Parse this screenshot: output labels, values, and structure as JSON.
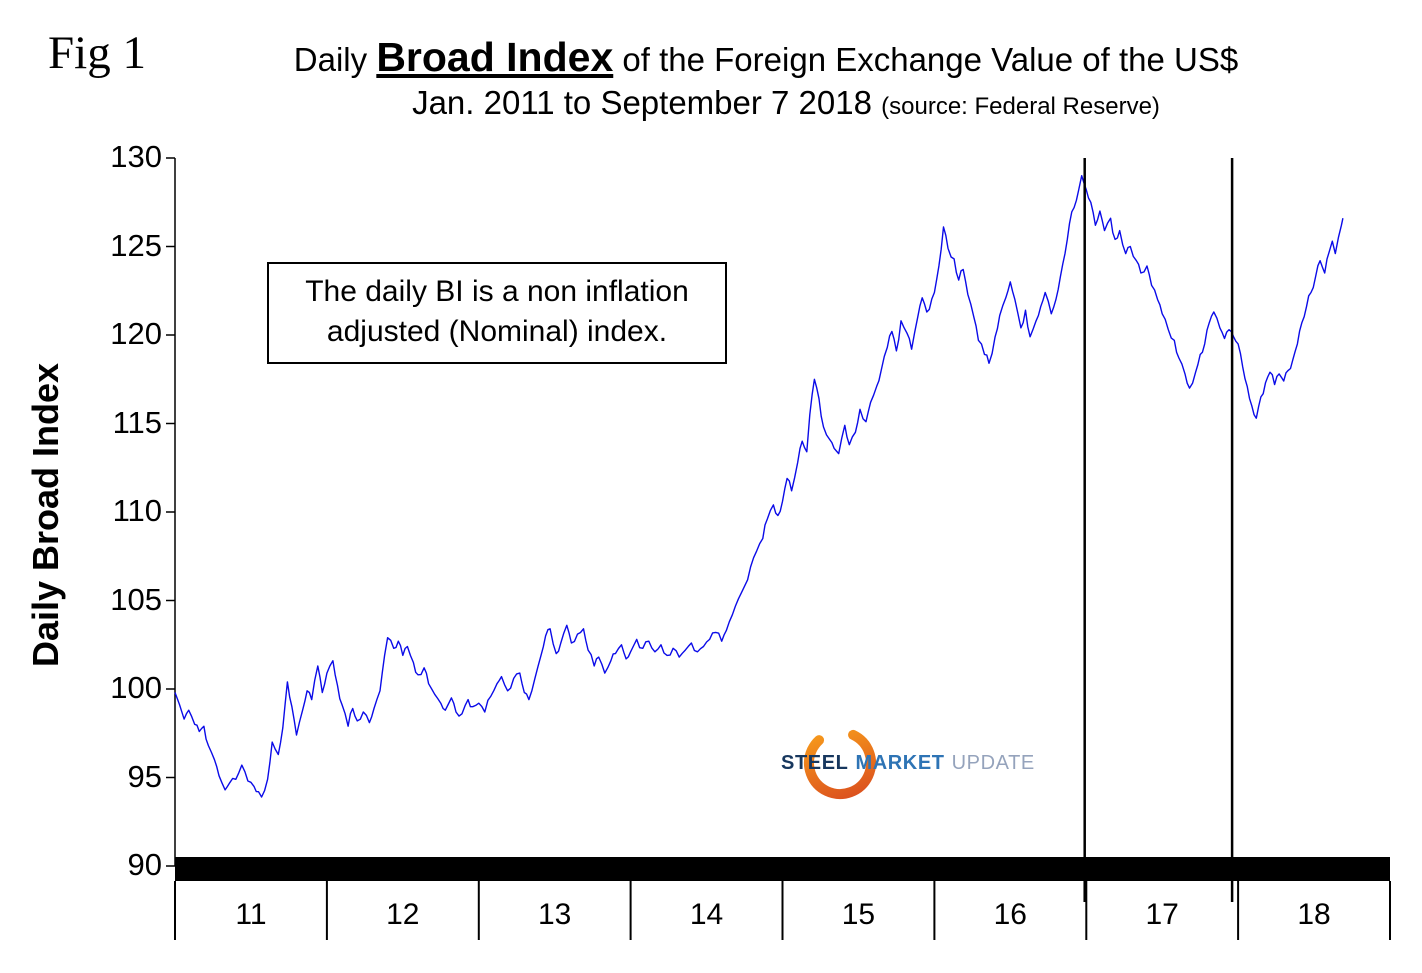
{
  "figure": {
    "fig_label": "Fig 1",
    "title_prefix": "Daily ",
    "title_emphasis": "Broad Index",
    "title_suffix": " of the Foreign Exchange Value of the US$",
    "subtitle": "Jan. 2011 to September 7 2018 ",
    "subtitle_source": "(source: Federal Reserve)"
  },
  "annotation_box": {
    "line1": "The daily BI is a non inflation",
    "line2": "adjusted (Nominal) index."
  },
  "logo": {
    "word1": "STEEL",
    "word2": "MARKET",
    "word3": "UPDATE",
    "word1_color": "#17375E",
    "word2_color": "#2E74B5",
    "word3_color": "#95A3BC",
    "swoosh_color_1": "#D94A1E",
    "swoosh_color_2": "#F9A11B"
  },
  "chart_data": {
    "type": "line",
    "title": "Daily Broad Index of the Foreign Exchange Value of the US$",
    "subtitle": "Jan. 2011 to September 7 2018 (source: Federal Reserve)",
    "xlabel": "",
    "ylabel": "Daily Broad Index",
    "xlim": [
      2011,
      2019
    ],
    "ylim": [
      90,
      130
    ],
    "grid": false,
    "legend": "none",
    "line_color": "#0B0BE8",
    "noise_amplitude": 0.22,
    "y_ticks": [
      90,
      95,
      100,
      105,
      110,
      115,
      120,
      125,
      130
    ],
    "x_tick_labels": [
      "11",
      "12",
      "13",
      "14",
      "15",
      "16",
      "17",
      "18"
    ],
    "vlines": [
      2016.99,
      2017.96
    ],
    "series": [
      {
        "name": "Daily Broad Index (Nominal)",
        "points": [
          [
            2011.0,
            99.8
          ],
          [
            2011.03,
            99.1
          ],
          [
            2011.06,
            98.3
          ],
          [
            2011.09,
            98.8
          ],
          [
            2011.13,
            98.0
          ],
          [
            2011.16,
            97.6
          ],
          [
            2011.19,
            97.9
          ],
          [
            2011.22,
            96.8
          ],
          [
            2011.26,
            96.0
          ],
          [
            2011.29,
            95.1
          ],
          [
            2011.33,
            94.3
          ],
          [
            2011.36,
            94.7
          ],
          [
            2011.4,
            94.9
          ],
          [
            2011.44,
            95.7
          ],
          [
            2011.48,
            94.8
          ],
          [
            2011.52,
            94.5
          ],
          [
            2011.55,
            94.2
          ],
          [
            2011.57,
            93.9
          ],
          [
            2011.61,
            94.9
          ],
          [
            2011.64,
            97.0
          ],
          [
            2011.68,
            96.3
          ],
          [
            2011.71,
            97.8
          ],
          [
            2011.74,
            100.4
          ],
          [
            2011.77,
            99.0
          ],
          [
            2011.8,
            97.4
          ],
          [
            2011.84,
            98.8
          ],
          [
            2011.87,
            99.9
          ],
          [
            2011.9,
            99.4
          ],
          [
            2011.94,
            101.3
          ],
          [
            2011.97,
            99.8
          ],
          [
            2012.0,
            100.9
          ],
          [
            2012.04,
            101.6
          ],
          [
            2012.07,
            100.2
          ],
          [
            2012.1,
            99.1
          ],
          [
            2012.14,
            97.9
          ],
          [
            2012.17,
            98.9
          ],
          [
            2012.2,
            98.2
          ],
          [
            2012.24,
            98.7
          ],
          [
            2012.28,
            98.1
          ],
          [
            2012.31,
            98.9
          ],
          [
            2012.35,
            99.9
          ],
          [
            2012.38,
            101.9
          ],
          [
            2012.4,
            102.9
          ],
          [
            2012.44,
            102.3
          ],
          [
            2012.47,
            102.7
          ],
          [
            2012.5,
            101.9
          ],
          [
            2012.53,
            102.4
          ],
          [
            2012.57,
            101.5
          ],
          [
            2012.6,
            100.8
          ],
          [
            2012.64,
            101.2
          ],
          [
            2012.67,
            100.3
          ],
          [
            2012.71,
            99.7
          ],
          [
            2012.75,
            99.2
          ],
          [
            2012.78,
            98.8
          ],
          [
            2012.82,
            99.5
          ],
          [
            2012.85,
            98.7
          ],
          [
            2012.89,
            98.6
          ],
          [
            2012.93,
            99.4
          ],
          [
            2012.96,
            99.0
          ],
          [
            2013.0,
            99.2
          ],
          [
            2013.04,
            98.7
          ],
          [
            2013.08,
            99.6
          ],
          [
            2013.12,
            100.3
          ],
          [
            2013.15,
            100.7
          ],
          [
            2013.19,
            99.9
          ],
          [
            2013.23,
            100.6
          ],
          [
            2013.27,
            100.9
          ],
          [
            2013.3,
            99.8
          ],
          [
            2013.33,
            99.4
          ],
          [
            2013.37,
            100.6
          ],
          [
            2013.41,
            101.9
          ],
          [
            2013.44,
            103.0
          ],
          [
            2013.47,
            103.4
          ],
          [
            2013.51,
            102.0
          ],
          [
            2013.54,
            102.6
          ],
          [
            2013.58,
            103.6
          ],
          [
            2013.61,
            102.6
          ],
          [
            2013.65,
            103.1
          ],
          [
            2013.69,
            103.4
          ],
          [
            2013.72,
            102.2
          ],
          [
            2013.76,
            101.3
          ],
          [
            2013.79,
            101.8
          ],
          [
            2013.83,
            100.9
          ],
          [
            2013.87,
            101.6
          ],
          [
            2013.9,
            102.0
          ],
          [
            2013.94,
            102.5
          ],
          [
            2013.97,
            101.7
          ],
          [
            2014.0,
            102.1
          ],
          [
            2014.04,
            102.8
          ],
          [
            2014.08,
            102.3
          ],
          [
            2014.12,
            102.7
          ],
          [
            2014.16,
            102.1
          ],
          [
            2014.2,
            102.5
          ],
          [
            2014.24,
            101.9
          ],
          [
            2014.28,
            102.3
          ],
          [
            2014.32,
            101.8
          ],
          [
            2014.36,
            102.2
          ],
          [
            2014.4,
            102.6
          ],
          [
            2014.44,
            102.1
          ],
          [
            2014.48,
            102.4
          ],
          [
            2014.52,
            102.8
          ],
          [
            2014.56,
            103.2
          ],
          [
            2014.6,
            102.7
          ],
          [
            2014.63,
            103.3
          ],
          [
            2014.67,
            104.2
          ],
          [
            2014.71,
            105.1
          ],
          [
            2014.75,
            105.8
          ],
          [
            2014.79,
            106.9
          ],
          [
            2014.83,
            107.8
          ],
          [
            2014.87,
            108.5
          ],
          [
            2014.9,
            109.6
          ],
          [
            2014.94,
            110.4
          ],
          [
            2014.97,
            109.8
          ],
          [
            2015.0,
            110.6
          ],
          [
            2015.03,
            111.9
          ],
          [
            2015.06,
            111.2
          ],
          [
            2015.1,
            112.8
          ],
          [
            2015.13,
            114.0
          ],
          [
            2015.16,
            113.4
          ],
          [
            2015.18,
            115.5
          ],
          [
            2015.21,
            117.5
          ],
          [
            2015.24,
            116.4
          ],
          [
            2015.27,
            114.8
          ],
          [
            2015.31,
            114.1
          ],
          [
            2015.34,
            113.6
          ],
          [
            2015.37,
            113.3
          ],
          [
            2015.41,
            114.9
          ],
          [
            2015.44,
            113.8
          ],
          [
            2015.48,
            114.5
          ],
          [
            2015.51,
            115.8
          ],
          [
            2015.55,
            115.1
          ],
          [
            2015.58,
            116.2
          ],
          [
            2015.62,
            117.1
          ],
          [
            2015.65,
            118.0
          ],
          [
            2015.69,
            119.3
          ],
          [
            2015.72,
            120.2
          ],
          [
            2015.75,
            119.1
          ],
          [
            2015.78,
            120.8
          ],
          [
            2015.82,
            120.1
          ],
          [
            2015.85,
            119.2
          ],
          [
            2015.89,
            121.0
          ],
          [
            2015.92,
            122.1
          ],
          [
            2015.95,
            121.3
          ],
          [
            2016.0,
            122.4
          ],
          [
            2016.03,
            123.9
          ],
          [
            2016.06,
            126.1
          ],
          [
            2016.09,
            124.9
          ],
          [
            2016.13,
            124.3
          ],
          [
            2016.16,
            123.1
          ],
          [
            2016.19,
            123.7
          ],
          [
            2016.22,
            122.3
          ],
          [
            2016.26,
            121.0
          ],
          [
            2016.29,
            119.7
          ],
          [
            2016.33,
            118.9
          ],
          [
            2016.36,
            118.4
          ],
          [
            2016.4,
            119.9
          ],
          [
            2016.43,
            121.1
          ],
          [
            2016.47,
            122.1
          ],
          [
            2016.5,
            123.0
          ],
          [
            2016.53,
            122.0
          ],
          [
            2016.57,
            120.4
          ],
          [
            2016.6,
            121.4
          ],
          [
            2016.63,
            119.9
          ],
          [
            2016.67,
            120.8
          ],
          [
            2016.7,
            121.6
          ],
          [
            2016.73,
            122.4
          ],
          [
            2016.77,
            121.2
          ],
          [
            2016.8,
            122.0
          ],
          [
            2016.83,
            123.3
          ],
          [
            2016.86,
            124.6
          ],
          [
            2016.89,
            126.3
          ],
          [
            2016.92,
            127.2
          ],
          [
            2016.95,
            128.2
          ],
          [
            2016.97,
            129.0
          ],
          [
            2017.0,
            128.2
          ],
          [
            2017.03,
            127.5
          ],
          [
            2017.06,
            126.2
          ],
          [
            2017.09,
            127.0
          ],
          [
            2017.12,
            125.9
          ],
          [
            2017.16,
            126.6
          ],
          [
            2017.19,
            125.4
          ],
          [
            2017.22,
            125.9
          ],
          [
            2017.26,
            124.6
          ],
          [
            2017.29,
            125.0
          ],
          [
            2017.33,
            124.2
          ],
          [
            2017.36,
            123.5
          ],
          [
            2017.4,
            123.9
          ],
          [
            2017.43,
            122.8
          ],
          [
            2017.47,
            122.0
          ],
          [
            2017.5,
            121.2
          ],
          [
            2017.54,
            120.3
          ],
          [
            2017.58,
            119.7
          ],
          [
            2017.61,
            118.7
          ],
          [
            2017.65,
            117.8
          ],
          [
            2017.68,
            117.0
          ],
          [
            2017.72,
            117.9
          ],
          [
            2017.75,
            118.9
          ],
          [
            2017.78,
            119.5
          ],
          [
            2017.81,
            120.7
          ],
          [
            2017.84,
            121.3
          ],
          [
            2017.88,
            120.4
          ],
          [
            2017.91,
            119.8
          ],
          [
            2017.94,
            120.3
          ],
          [
            2017.97,
            119.9
          ],
          [
            2018.0,
            119.5
          ],
          [
            2018.03,
            118.2
          ],
          [
            2018.06,
            117.1
          ],
          [
            2018.09,
            116.0
          ],
          [
            2018.12,
            115.3
          ],
          [
            2018.15,
            116.5
          ],
          [
            2018.18,
            117.3
          ],
          [
            2018.21,
            117.9
          ],
          [
            2018.24,
            117.2
          ],
          [
            2018.27,
            117.8
          ],
          [
            2018.3,
            117.4
          ],
          [
            2018.33,
            118.0
          ],
          [
            2018.36,
            118.6
          ],
          [
            2018.39,
            119.5
          ],
          [
            2018.42,
            120.7
          ],
          [
            2018.45,
            121.6
          ],
          [
            2018.48,
            122.4
          ],
          [
            2018.51,
            123.3
          ],
          [
            2018.54,
            124.2
          ],
          [
            2018.57,
            123.5
          ],
          [
            2018.6,
            124.7
          ],
          [
            2018.62,
            125.3
          ],
          [
            2018.64,
            124.6
          ],
          [
            2018.66,
            125.5
          ],
          [
            2018.68,
            126.2
          ],
          [
            2018.69,
            126.6
          ]
        ]
      }
    ]
  }
}
